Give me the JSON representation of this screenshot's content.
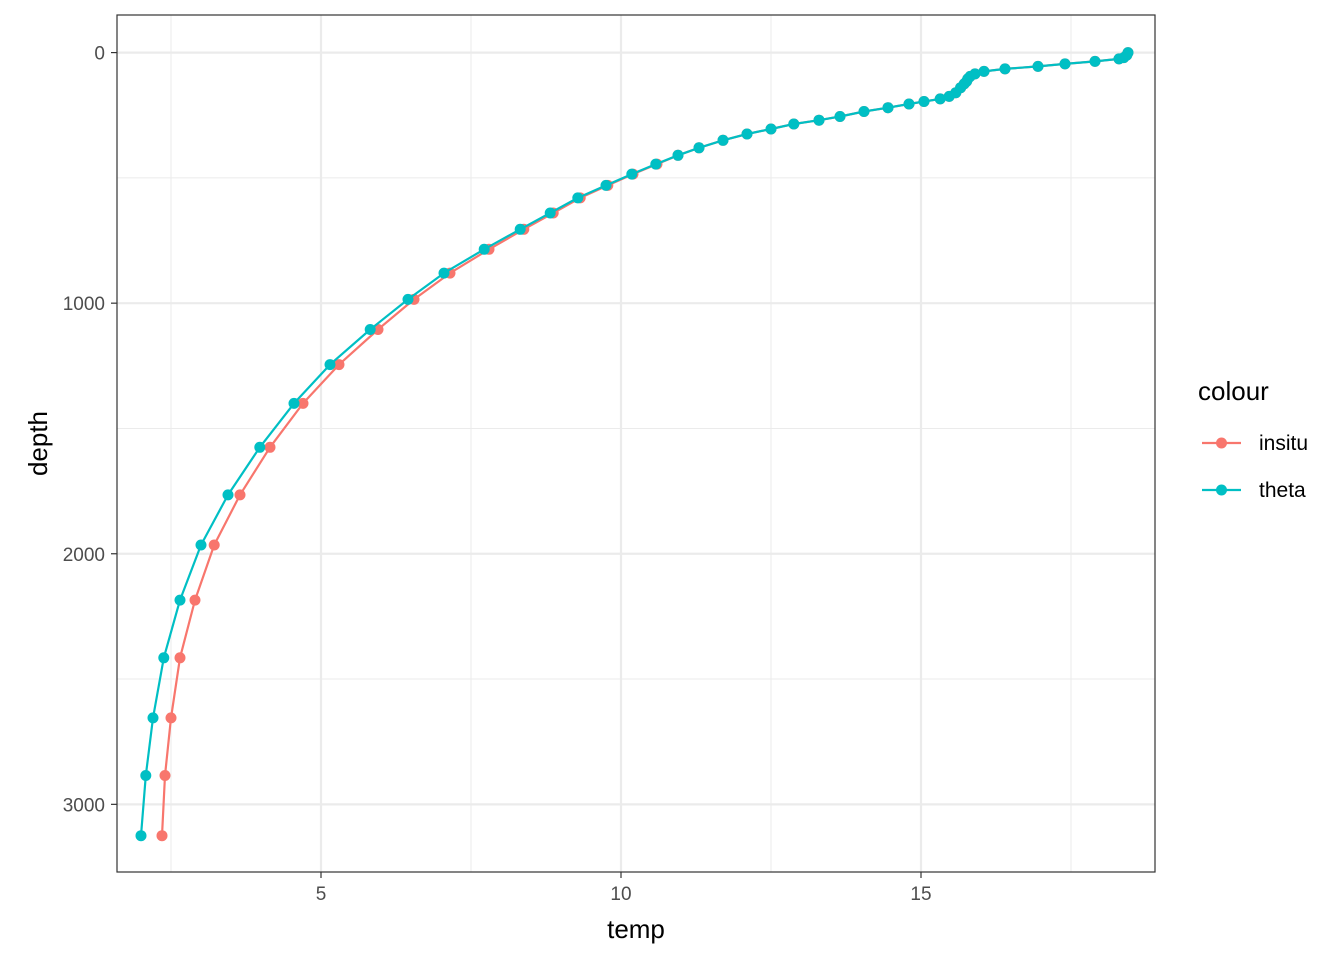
{
  "chart_data": {
    "type": "line",
    "title": "",
    "xlabel": "temp",
    "ylabel": "depth",
    "xlim": [
      1.6,
      18.9
    ],
    "ylim": [
      3270,
      -150
    ],
    "y_reversed": true,
    "x_ticks": [
      5,
      10,
      15
    ],
    "x_tick_labels": [
      "5",
      "10",
      "15"
    ],
    "y_ticks": [
      0,
      1000,
      2000,
      3000
    ],
    "y_tick_labels": [
      "0",
      "1000",
      "2000",
      "3000"
    ],
    "grid": true,
    "legend": {
      "title": "colour",
      "position": "right"
    },
    "series": [
      {
        "name": "insitu",
        "color": "#F8766D",
        "points": [
          [
            18.45,
            0
          ],
          [
            18.43,
            10
          ],
          [
            18.38,
            20
          ],
          [
            18.3,
            25
          ],
          [
            17.9,
            35
          ],
          [
            17.4,
            45
          ],
          [
            16.95,
            55
          ],
          [
            16.4,
            65
          ],
          [
            16.05,
            75
          ],
          [
            15.9,
            85
          ],
          [
            15.82,
            95
          ],
          [
            15.78,
            105
          ],
          [
            15.76,
            115
          ],
          [
            15.72,
            125
          ],
          [
            15.66,
            140
          ],
          [
            15.58,
            160
          ],
          [
            15.47,
            175
          ],
          [
            15.32,
            185
          ],
          [
            15.05,
            195
          ],
          [
            14.8,
            205
          ],
          [
            14.45,
            220
          ],
          [
            14.05,
            235
          ],
          [
            13.65,
            255
          ],
          [
            13.3,
            270
          ],
          [
            12.88,
            285
          ],
          [
            12.5,
            305
          ],
          [
            12.1,
            325
          ],
          [
            11.7,
            350
          ],
          [
            11.3,
            380
          ],
          [
            10.95,
            410
          ],
          [
            10.6,
            445
          ],
          [
            10.2,
            485
          ],
          [
            9.78,
            530
          ],
          [
            9.32,
            580
          ],
          [
            8.87,
            640
          ],
          [
            8.38,
            705
          ],
          [
            7.8,
            785
          ],
          [
            7.15,
            880
          ],
          [
            6.55,
            985
          ],
          [
            5.95,
            1105
          ],
          [
            5.3,
            1245
          ],
          [
            4.7,
            1400
          ],
          [
            4.15,
            1575
          ],
          [
            3.65,
            1765
          ],
          [
            3.22,
            1965
          ],
          [
            2.9,
            2185
          ],
          [
            2.65,
            2415
          ],
          [
            2.5,
            2655
          ],
          [
            2.4,
            2885
          ],
          [
            2.35,
            3125
          ]
        ]
      },
      {
        "name": "theta",
        "color": "#00BFC4",
        "points": [
          [
            18.45,
            0
          ],
          [
            18.43,
            10
          ],
          [
            18.38,
            20
          ],
          [
            18.3,
            25
          ],
          [
            17.9,
            35
          ],
          [
            17.4,
            45
          ],
          [
            16.95,
            55
          ],
          [
            16.4,
            65
          ],
          [
            16.05,
            75
          ],
          [
            15.9,
            85
          ],
          [
            15.82,
            95
          ],
          [
            15.78,
            105
          ],
          [
            15.76,
            115
          ],
          [
            15.72,
            125
          ],
          [
            15.66,
            140
          ],
          [
            15.58,
            160
          ],
          [
            15.47,
            175
          ],
          [
            15.32,
            185
          ],
          [
            15.05,
            195
          ],
          [
            14.8,
            205
          ],
          [
            14.45,
            220
          ],
          [
            14.05,
            235
          ],
          [
            13.65,
            255
          ],
          [
            13.3,
            270
          ],
          [
            12.88,
            285
          ],
          [
            12.5,
            305
          ],
          [
            12.1,
            325
          ],
          [
            11.7,
            350
          ],
          [
            11.3,
            380
          ],
          [
            10.95,
            410
          ],
          [
            10.58,
            445
          ],
          [
            10.18,
            485
          ],
          [
            9.75,
            530
          ],
          [
            9.28,
            580
          ],
          [
            8.82,
            640
          ],
          [
            8.32,
            705
          ],
          [
            7.72,
            785
          ],
          [
            7.05,
            880
          ],
          [
            6.45,
            985
          ],
          [
            5.82,
            1105
          ],
          [
            5.15,
            1245
          ],
          [
            4.55,
            1400
          ],
          [
            3.98,
            1575
          ],
          [
            3.45,
            1765
          ],
          [
            3.0,
            1965
          ],
          [
            2.65,
            2185
          ],
          [
            2.38,
            2415
          ],
          [
            2.2,
            2655
          ],
          [
            2.08,
            2885
          ],
          [
            2.0,
            3125
          ]
        ]
      }
    ]
  }
}
